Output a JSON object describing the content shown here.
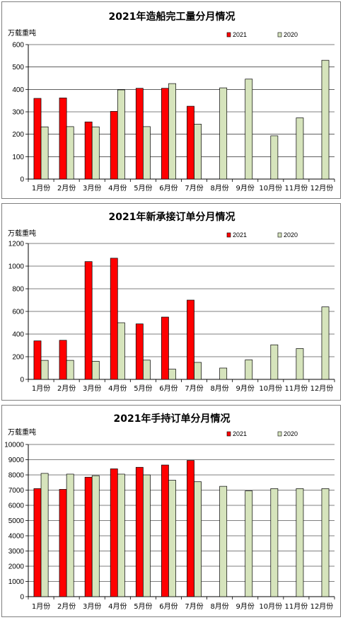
{
  "colors": {
    "s2021": "#ff0000",
    "s2020": "#d6e4bc",
    "stroke": "#000000",
    "grid": "#000000"
  },
  "chart_data": [
    {
      "type": "bar",
      "title": "2021年造船完工量分月情况",
      "ylabel": "万载重吨",
      "ylim": [
        0,
        600
      ],
      "yticks": [
        0,
        100,
        200,
        300,
        400,
        500,
        600
      ],
      "ytick_labels": [
        "0",
        "100",
        "200",
        "300",
        "400",
        "500",
        "600"
      ],
      "grid": true,
      "legend": "top-right",
      "categories": [
        "1月份",
        "2月份",
        "3月份",
        "4月份",
        "5月份",
        "6月份",
        "7月份",
        "8月份",
        "9月份",
        "10月份",
        "11月份",
        "12月份"
      ],
      "series": [
        {
          "name": "2021",
          "values": [
            360,
            362,
            255,
            302,
            405,
            405,
            325,
            null,
            null,
            null,
            null,
            null
          ]
        },
        {
          "name": "2020",
          "values": [
            233,
            234,
            233,
            398,
            234,
            426,
            245,
            407,
            446,
            193,
            273,
            530
          ]
        }
      ]
    },
    {
      "type": "bar",
      "title": "2021年新承接订单分月情况",
      "ylabel": "万载重吨",
      "ylim": [
        0,
        1200
      ],
      "yticks": [
        0,
        200,
        400,
        600,
        800,
        1000,
        1200
      ],
      "ytick_labels": [
        "0",
        "200",
        "400",
        "600",
        "800",
        "1000",
        "1200"
      ],
      "grid": true,
      "legend": "top-right",
      "categories": [
        "1月份",
        "2月份",
        "3月份",
        "4月份",
        "5月份",
        "6月份",
        "7月份",
        "8月份",
        "9月份",
        "10月份",
        "11月份",
        "12月份"
      ],
      "series": [
        {
          "name": "2021",
          "values": [
            340,
            345,
            1040,
            1070,
            490,
            550,
            700,
            null,
            null,
            null,
            null,
            null
          ]
        },
        {
          "name": "2020",
          "values": [
            168,
            168,
            160,
            500,
            170,
            90,
            150,
            100,
            172,
            305,
            272,
            640
          ]
        }
      ]
    },
    {
      "type": "bar",
      "title": "2021年手持订单分月情况",
      "ylabel": "万载重吨",
      "ylim": [
        0,
        10000
      ],
      "yticks": [
        0,
        1000,
        2000,
        3000,
        4000,
        5000,
        6000,
        7000,
        8000,
        9000,
        10000
      ],
      "ytick_labels": [
        "0",
        "1000",
        "2000",
        "3000",
        "4000",
        "5000",
        "6000",
        "7000",
        "8000",
        "9000",
        "10000"
      ],
      "grid": true,
      "legend": "top-right",
      "categories": [
        "1月份",
        "2月份",
        "3月份",
        "4月份",
        "5月份",
        "6月份",
        "7月份",
        "8月份",
        "9月份",
        "10月份",
        "11月份",
        "12月份"
      ],
      "series": [
        {
          "name": "2021",
          "values": [
            7100,
            7050,
            7850,
            8400,
            8500,
            8650,
            8950,
            null,
            null,
            null,
            null,
            null
          ]
        },
        {
          "name": "2020",
          "values": [
            8100,
            8050,
            7950,
            8050,
            8000,
            7650,
            7550,
            7250,
            6950,
            7100,
            7100,
            7100
          ]
        }
      ]
    }
  ]
}
